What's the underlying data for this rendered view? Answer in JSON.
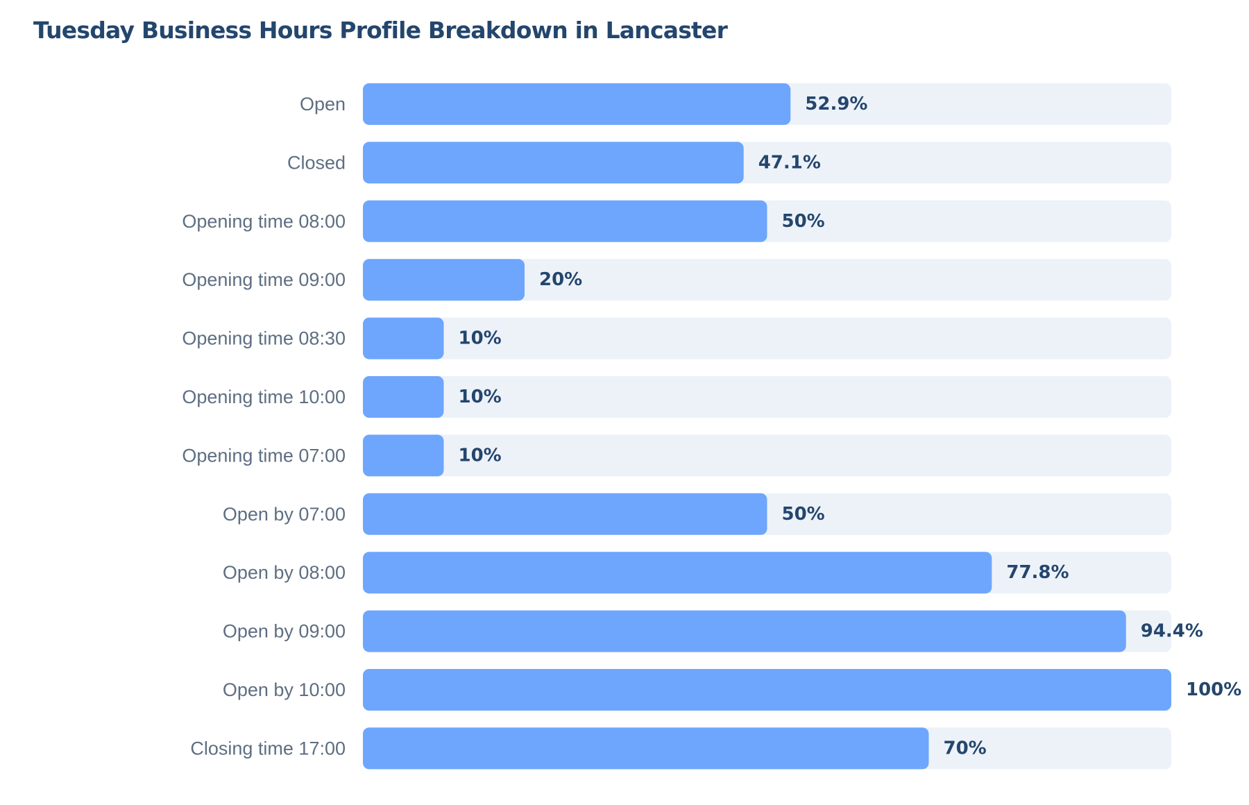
{
  "chart_data": {
    "type": "bar",
    "orientation": "horizontal",
    "title": "Tuesday Business Hours Profile Breakdown in Lancaster",
    "xlabel": "",
    "ylabel": "",
    "xlim": [
      0,
      100
    ],
    "unit": "%",
    "grid": false,
    "categories": [
      "Open",
      "Closed",
      "Opening time 08:00",
      "Opening time 09:00",
      "Opening time 08:30",
      "Opening time 10:00",
      "Opening time 07:00",
      "Open by 07:00",
      "Open by 08:00",
      "Open by 09:00",
      "Open by 10:00",
      "Closing time 17:00"
    ],
    "values": [
      52.9,
      47.1,
      50,
      20,
      10,
      10,
      10,
      50,
      77.8,
      94.4,
      100,
      70
    ],
    "value_labels": [
      "52.9%",
      "47.1%",
      "50%",
      "20%",
      "10%",
      "10%",
      "10%",
      "50%",
      "77.8%",
      "94.4%",
      "100%",
      "70%"
    ],
    "colors": {
      "bar": "#6ea6fd",
      "track": "#edf2f9",
      "title": "#24466d",
      "category_text": "#5e6e82",
      "value_text": "#24466d"
    }
  }
}
